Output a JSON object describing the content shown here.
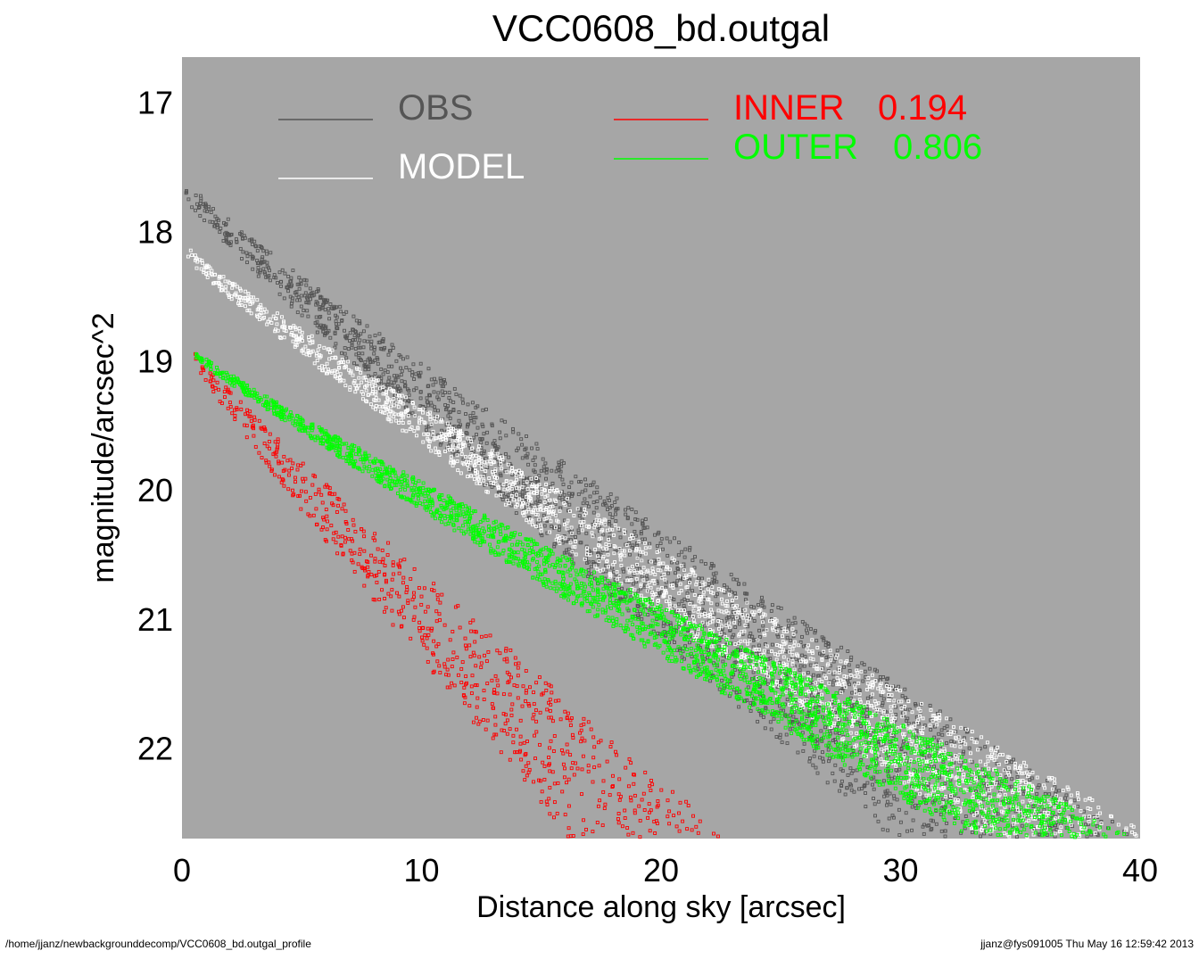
{
  "chart_data": {
    "type": "scatter",
    "title": "VCC0608_bd.outgal",
    "xlabel": "Distance along sky [arcsec]",
    "ylabel": "magnitude/arcsec^2",
    "xlim": [
      0,
      40
    ],
    "ylim": [
      22.7,
      16.65
    ],
    "y_inverted": true,
    "x_ticks": [
      "0",
      "10",
      "20",
      "30",
      "40"
    ],
    "y_ticks": [
      "17",
      "18",
      "19",
      "20",
      "21",
      "22"
    ],
    "grid": false,
    "background_color": "#a6a6a6",
    "legend": [
      {
        "label": "OBS",
        "value": "",
        "color": "#555555"
      },
      {
        "label": "MODEL",
        "value": "",
        "color": "#ffffff"
      },
      {
        "label": "INNER",
        "value": "0.194",
        "color": "#ff0000"
      },
      {
        "label": "OUTER",
        "value": "0.806",
        "color": "#00ff00"
      }
    ],
    "series": [
      {
        "key": "obs",
        "color": "#555555",
        "x_range": [
          0.1,
          40
        ],
        "y_start": 17.6,
        "y_end": 22.7,
        "scatter_spread": [
          0.15,
          1.6
        ]
      },
      {
        "key": "model",
        "color": "#ffffff",
        "x_range": [
          0.1,
          40
        ],
        "y_start": 18.1,
        "y_end": 22.6,
        "scatter_spread": [
          0.1,
          0.9
        ]
      },
      {
        "key": "inner",
        "color": "#ff0000",
        "x_range": [
          0.4,
          23
        ],
        "y_start": 18.9,
        "y_end": 22.7,
        "scatter_spread": [
          0.1,
          1.5
        ]
      },
      {
        "key": "outer",
        "color": "#00ff00",
        "x_range": [
          0.4,
          40
        ],
        "y_start": 18.9,
        "y_end": 22.7,
        "scatter_spread": [
          0.05,
          0.75
        ]
      }
    ]
  },
  "footer": {
    "left": "/home/jjanz/newbackgrounddecomp/VCC0608_bd.outgal_profile",
    "right": "jjanz@fys091005  Thu May 16 12:59:42 2013"
  }
}
